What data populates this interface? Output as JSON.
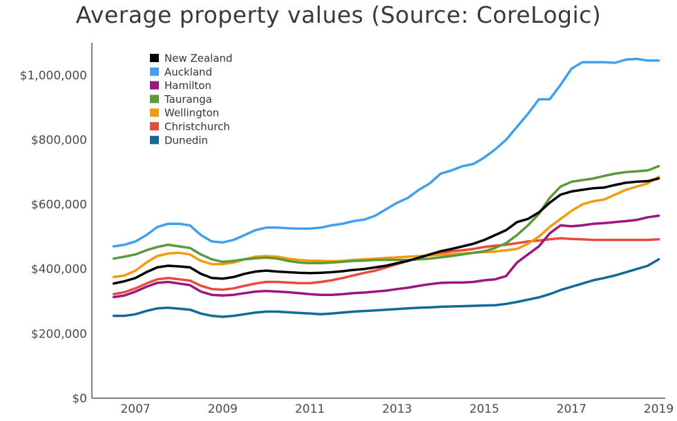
{
  "chart_data": {
    "type": "line",
    "title": "Average property values (Source: CoreLogic)",
    "xlabel": "",
    "ylabel": "",
    "x": [
      2006.5,
      2006.75,
      2007.0,
      2007.25,
      2007.5,
      2007.75,
      2008.0,
      2008.25,
      2008.5,
      2008.75,
      2009.0,
      2009.25,
      2009.5,
      2009.75,
      2010.0,
      2010.25,
      2010.5,
      2010.75,
      2011.0,
      2011.25,
      2011.5,
      2011.75,
      2012.0,
      2012.25,
      2012.5,
      2012.75,
      2013.0,
      2013.25,
      2013.5,
      2013.75,
      2014.0,
      2014.25,
      2014.5,
      2014.75,
      2015.0,
      2015.25,
      2015.5,
      2015.75,
      2016.0,
      2016.25,
      2016.5,
      2016.75,
      2017.0,
      2017.25,
      2017.5,
      2017.75,
      2018.0,
      2018.25,
      2018.5,
      2018.75,
      2019.0
    ],
    "xticks": [
      "2007",
      "2009",
      "2011",
      "2013",
      "2015",
      "2017",
      "2019"
    ],
    "xtick_values": [
      2007,
      2009,
      2011,
      2013,
      2015,
      2017,
      2019
    ],
    "yticks": [
      "$0",
      "$200,000",
      "$400,000",
      "$600,000",
      "$800,000",
      "$1,000,000"
    ],
    "ytick_values": [
      0,
      200000,
      400000,
      600000,
      800000,
      1000000
    ],
    "ylim": [
      0,
      1100000
    ],
    "xlim": [
      2006.0,
      2019.15
    ],
    "grid": false,
    "legend_position": "top-left",
    "series": [
      {
        "name": "New Zealand",
        "color": "#000000",
        "values": [
          355000,
          362000,
          372000,
          390000,
          405000,
          410000,
          408000,
          405000,
          385000,
          372000,
          370000,
          375000,
          385000,
          392000,
          395000,
          392000,
          390000,
          388000,
          387000,
          388000,
          390000,
          393000,
          397000,
          400000,
          405000,
          410000,
          418000,
          425000,
          435000,
          445000,
          455000,
          462000,
          470000,
          478000,
          490000,
          505000,
          520000,
          545000,
          555000,
          575000,
          605000,
          630000,
          640000,
          645000,
          650000,
          652000,
          660000,
          667000,
          670000,
          672000,
          680000
        ]
      },
      {
        "name": "Auckland",
        "color": "#3fa0f0",
        "values": [
          470000,
          475000,
          485000,
          505000,
          530000,
          540000,
          540000,
          535000,
          505000,
          485000,
          482000,
          490000,
          505000,
          520000,
          528000,
          528000,
          526000,
          525000,
          525000,
          528000,
          535000,
          540000,
          548000,
          553000,
          565000,
          585000,
          605000,
          620000,
          645000,
          665000,
          695000,
          705000,
          718000,
          725000,
          745000,
          770000,
          800000,
          840000,
          880000,
          925000,
          925000,
          970000,
          1020000,
          1040000,
          1040000,
          1040000,
          1038000,
          1048000,
          1050000,
          1045000,
          1045000
        ]
      },
      {
        "name": "Hamilton",
        "color": "#9b1680",
        "values": [
          313000,
          318000,
          330000,
          345000,
          357000,
          360000,
          355000,
          350000,
          330000,
          320000,
          318000,
          320000,
          325000,
          330000,
          332000,
          330000,
          328000,
          325000,
          322000,
          320000,
          320000,
          322000,
          325000,
          327000,
          330000,
          333000,
          338000,
          342000,
          348000,
          353000,
          357000,
          358000,
          358000,
          360000,
          365000,
          368000,
          378000,
          420000,
          445000,
          470000,
          510000,
          535000,
          532000,
          535000,
          540000,
          542000,
          545000,
          548000,
          552000,
          560000,
          565000
        ]
      },
      {
        "name": "Tauranga",
        "color": "#5b9a3a",
        "values": [
          432000,
          438000,
          445000,
          458000,
          468000,
          475000,
          470000,
          465000,
          445000,
          430000,
          422000,
          425000,
          430000,
          433000,
          435000,
          432000,
          425000,
          420000,
          418000,
          418000,
          420000,
          422000,
          425000,
          426000,
          428000,
          428000,
          428000,
          428000,
          430000,
          432000,
          436000,
          440000,
          445000,
          450000,
          455000,
          465000,
          480000,
          505000,
          535000,
          570000,
          620000,
          655000,
          670000,
          675000,
          680000,
          688000,
          695000,
          700000,
          702000,
          705000,
          718000
        ]
      },
      {
        "name": "Wellington",
        "color": "#f59a0c",
        "values": [
          375000,
          380000,
          395000,
          420000,
          440000,
          448000,
          450000,
          445000,
          425000,
          415000,
          415000,
          420000,
          430000,
          438000,
          440000,
          438000,
          432000,
          428000,
          426000,
          425000,
          424000,
          425000,
          428000,
          430000,
          432000,
          434000,
          436000,
          438000,
          440000,
          442000,
          444000,
          446000,
          448000,
          450000,
          452000,
          454000,
          458000,
          462000,
          478000,
          500000,
          530000,
          555000,
          580000,
          600000,
          610000,
          615000,
          630000,
          645000,
          655000,
          665000,
          685000
        ]
      },
      {
        "name": "Christchurch",
        "color": "#e84a3c",
        "values": [
          322000,
          328000,
          340000,
          355000,
          368000,
          372000,
          368000,
          364000,
          348000,
          338000,
          336000,
          340000,
          348000,
          355000,
          360000,
          360000,
          358000,
          356000,
          356000,
          360000,
          365000,
          372000,
          380000,
          388000,
          395000,
          405000,
          415000,
          425000,
          435000,
          443000,
          450000,
          455000,
          458000,
          462000,
          468000,
          472000,
          475000,
          480000,
          485000,
          488000,
          492000,
          495000,
          493000,
          492000,
          490000,
          490000,
          490000,
          490000,
          490000,
          490000,
          492000
        ]
      },
      {
        "name": "Dunedin",
        "color": "#126a9c",
        "values": [
          255000,
          255000,
          260000,
          270000,
          278000,
          280000,
          277000,
          274000,
          262000,
          255000,
          252000,
          255000,
          260000,
          265000,
          268000,
          268000,
          266000,
          264000,
          262000,
          260000,
          262000,
          265000,
          268000,
          270000,
          272000,
          274000,
          276000,
          278000,
          280000,
          281000,
          283000,
          284000,
          285000,
          286000,
          287000,
          288000,
          292000,
          298000,
          305000,
          312000,
          322000,
          335000,
          345000,
          355000,
          365000,
          372000,
          380000,
          390000,
          400000,
          410000,
          430000
        ]
      }
    ]
  }
}
